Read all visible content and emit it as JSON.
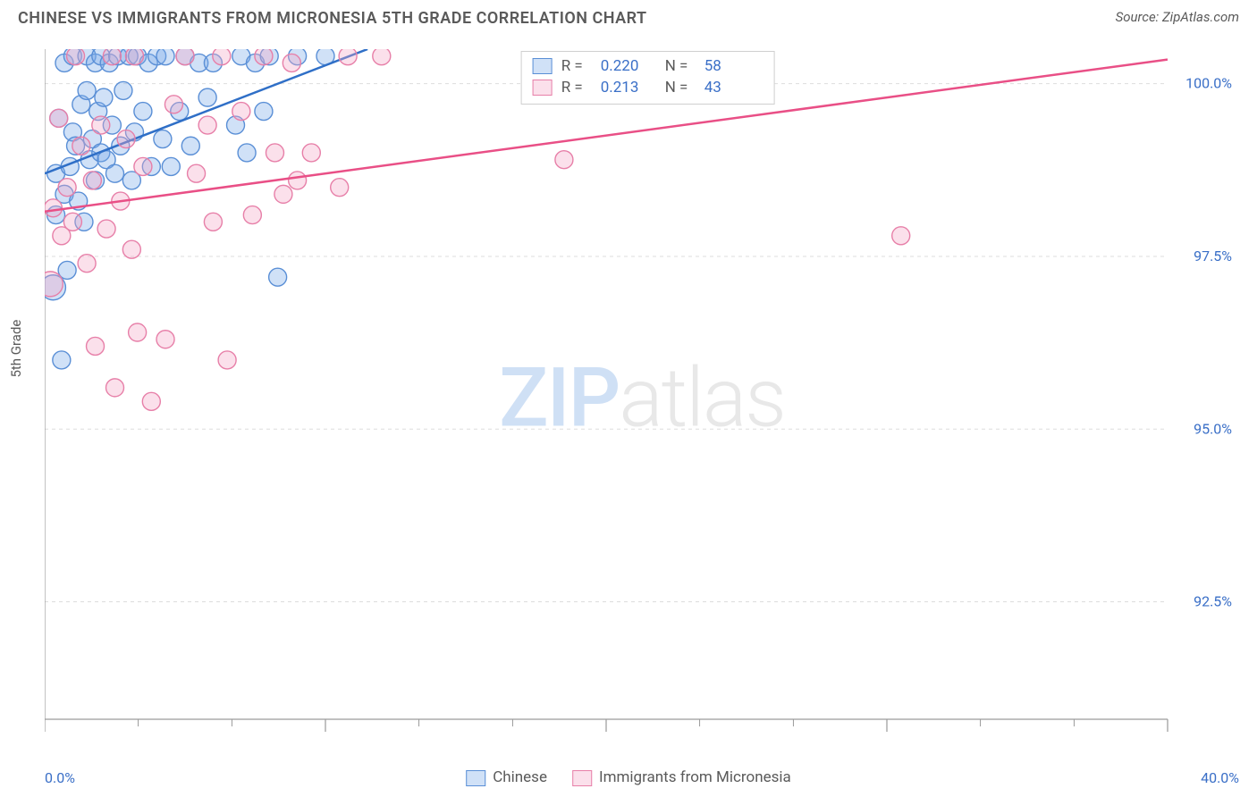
{
  "header": {
    "title": "CHINESE VS IMMIGRANTS FROM MICRONESIA 5TH GRADE CORRELATION CHART",
    "source_label": "Source: ",
    "source_value": "ZipAtlas.com"
  },
  "watermark": {
    "zip": "ZIP",
    "atlas": "atlas"
  },
  "chart": {
    "type": "scatter",
    "ylabel": "5th Grade",
    "xlim": [
      0.0,
      40.0
    ],
    "ylim": [
      90.8,
      100.5
    ],
    "x_ticks_major": [
      0,
      10,
      20,
      30,
      40
    ],
    "x_ticks_minor": [
      3.33,
      6.67,
      13.33,
      16.67,
      23.33,
      26.67,
      33.33,
      36.67
    ],
    "x_tick_labels": {
      "left": "0.0%",
      "right": "40.0%"
    },
    "x_tick_label_color": "#3a6fc7",
    "y_grid": [
      92.5,
      95.0,
      97.5,
      100.0
    ],
    "y_tick_labels": [
      "92.5%",
      "95.0%",
      "97.5%",
      "100.0%"
    ],
    "y_tick_label_color": "#3a6fc7",
    "grid_color": "#dddddd",
    "axis_color": "#9a9a9a",
    "background_color": "#ffffff",
    "marker_radius": 10,
    "marker_stroke_width": 1.4,
    "trendline_width": 2.5,
    "series": [
      {
        "name": "Chinese",
        "fill": "rgba(120,169,232,0.35)",
        "stroke": "#5a8fd6",
        "trend_color": "#2f6fc7",
        "trend": {
          "x1": 0.0,
          "y1": 98.7,
          "x2": 11.5,
          "y2": 100.5
        },
        "points": [
          [
            0.3,
            97.05,
            14
          ],
          [
            0.4,
            98.1,
            10
          ],
          [
            0.4,
            98.7,
            10
          ],
          [
            0.5,
            99.5,
            10
          ],
          [
            0.6,
            96.0,
            10
          ],
          [
            0.7,
            98.4,
            10
          ],
          [
            0.7,
            100.3,
            10
          ],
          [
            0.8,
            97.3,
            10
          ],
          [
            0.9,
            98.8,
            10
          ],
          [
            1.0,
            99.3,
            10
          ],
          [
            1.0,
            100.4,
            10
          ],
          [
            1.1,
            99.1,
            10
          ],
          [
            1.2,
            98.3,
            10
          ],
          [
            1.3,
            99.7,
            10
          ],
          [
            1.4,
            98.0,
            10
          ],
          [
            1.5,
            99.9,
            10
          ],
          [
            1.5,
            100.4,
            10
          ],
          [
            1.6,
            98.9,
            10
          ],
          [
            1.7,
            99.2,
            10
          ],
          [
            1.8,
            100.3,
            10
          ],
          [
            1.8,
            98.6,
            10
          ],
          [
            1.9,
            99.6,
            10
          ],
          [
            2.0,
            99.0,
            10
          ],
          [
            2.0,
            100.4,
            10
          ],
          [
            2.1,
            99.8,
            10
          ],
          [
            2.2,
            98.9,
            10
          ],
          [
            2.3,
            100.3,
            10
          ],
          [
            2.4,
            99.4,
            10
          ],
          [
            2.5,
            98.7,
            10
          ],
          [
            2.6,
            100.4,
            10
          ],
          [
            2.7,
            99.1,
            10
          ],
          [
            2.8,
            99.9,
            10
          ],
          [
            3.0,
            100.4,
            10
          ],
          [
            3.1,
            98.6,
            10
          ],
          [
            3.2,
            99.3,
            10
          ],
          [
            3.3,
            100.4,
            10
          ],
          [
            3.5,
            99.6,
            10
          ],
          [
            3.7,
            100.3,
            10
          ],
          [
            3.8,
            98.8,
            10
          ],
          [
            4.0,
            100.4,
            10
          ],
          [
            4.2,
            99.2,
            10
          ],
          [
            4.3,
            100.4,
            10
          ],
          [
            4.5,
            98.8,
            10
          ],
          [
            4.8,
            99.6,
            10
          ],
          [
            5.0,
            100.4,
            10
          ],
          [
            5.2,
            99.1,
            10
          ],
          [
            5.5,
            100.3,
            10
          ],
          [
            5.8,
            99.8,
            10
          ],
          [
            6.0,
            100.3,
            10
          ],
          [
            6.8,
            99.4,
            10
          ],
          [
            7.0,
            100.4,
            10
          ],
          [
            7.2,
            99.0,
            10
          ],
          [
            7.5,
            100.3,
            10
          ],
          [
            7.8,
            99.6,
            10
          ],
          [
            8.0,
            100.4,
            10
          ],
          [
            8.3,
            97.2,
            10
          ],
          [
            9.0,
            100.4,
            10
          ],
          [
            10.0,
            100.4,
            10
          ]
        ]
      },
      {
        "name": "Immigrants from Micronesia",
        "fill": "rgba(244,166,198,0.35)",
        "stroke": "#e77fa8",
        "trend_color": "#e94f86",
        "trend": {
          "x1": 0.0,
          "y1": 98.15,
          "x2": 40.0,
          "y2": 100.35
        },
        "points": [
          [
            0.2,
            97.1,
            14
          ],
          [
            0.3,
            98.2,
            10
          ],
          [
            0.5,
            99.5,
            10
          ],
          [
            0.6,
            97.8,
            10
          ],
          [
            0.8,
            98.5,
            10
          ],
          [
            1.0,
            98.0,
            10
          ],
          [
            1.1,
            100.4,
            10
          ],
          [
            1.3,
            99.1,
            10
          ],
          [
            1.5,
            97.4,
            10
          ],
          [
            1.7,
            98.6,
            10
          ],
          [
            1.8,
            96.2,
            10
          ],
          [
            2.0,
            99.4,
            10
          ],
          [
            2.2,
            97.9,
            10
          ],
          [
            2.4,
            100.4,
            10
          ],
          [
            2.5,
            95.6,
            10
          ],
          [
            2.7,
            98.3,
            10
          ],
          [
            2.9,
            99.2,
            10
          ],
          [
            3.1,
            97.6,
            10
          ],
          [
            3.2,
            100.4,
            10
          ],
          [
            3.3,
            96.4,
            10
          ],
          [
            3.5,
            98.8,
            10
          ],
          [
            3.8,
            95.4,
            10
          ],
          [
            4.3,
            96.3,
            10
          ],
          [
            4.6,
            99.7,
            10
          ],
          [
            5.0,
            100.4,
            10
          ],
          [
            5.4,
            98.7,
            10
          ],
          [
            5.8,
            99.4,
            10
          ],
          [
            6.0,
            98.0,
            10
          ],
          [
            6.3,
            100.4,
            10
          ],
          [
            6.5,
            96.0,
            10
          ],
          [
            7.0,
            99.6,
            10
          ],
          [
            7.4,
            98.1,
            10
          ],
          [
            7.8,
            100.4,
            10
          ],
          [
            8.2,
            99.0,
            10
          ],
          [
            8.5,
            98.4,
            10
          ],
          [
            8.8,
            100.3,
            10
          ],
          [
            9.0,
            98.6,
            10
          ],
          [
            9.5,
            99.0,
            10
          ],
          [
            10.5,
            98.5,
            10
          ],
          [
            10.8,
            100.4,
            10
          ],
          [
            12.0,
            100.4,
            10
          ],
          [
            18.5,
            98.9,
            10
          ],
          [
            30.5,
            97.8,
            10
          ]
        ]
      }
    ]
  },
  "stats_box": {
    "rows": [
      {
        "sw_fill": "rgba(120,169,232,0.35)",
        "sw_stroke": "#5a8fd6",
        "r_label": "R =",
        "r_value": "0.220",
        "n_label": "N =",
        "n_value": "58"
      },
      {
        "sw_fill": "rgba(244,166,198,0.35)",
        "sw_stroke": "#e77fa8",
        "r_label": "R =",
        "r_value": "0.213",
        "n_label": "N =",
        "n_value": "43"
      }
    ]
  },
  "bottom_legend": {
    "items": [
      {
        "sw_fill": "rgba(120,169,232,0.35)",
        "sw_stroke": "#5a8fd6",
        "label": "Chinese"
      },
      {
        "sw_fill": "rgba(244,166,198,0.35)",
        "sw_stroke": "#e77fa8",
        "label": "Immigrants from Micronesia"
      }
    ]
  }
}
